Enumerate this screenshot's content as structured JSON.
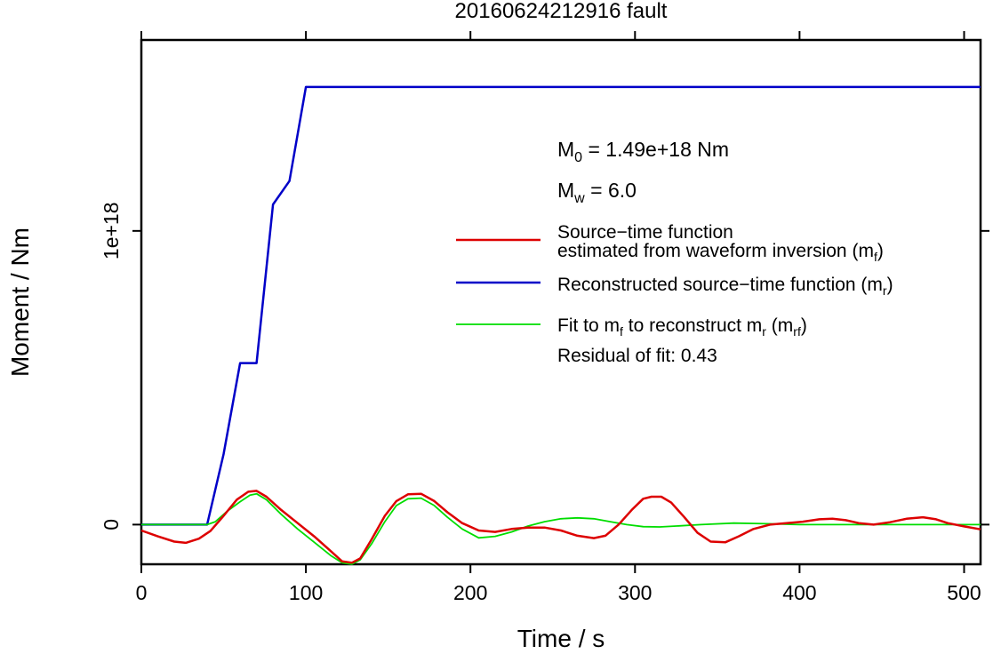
{
  "chart_data": {
    "type": "line",
    "title": "20160624212916 fault",
    "xlabel": "Time / s",
    "ylabel": "Moment / Nm",
    "xlim": [
      0,
      510
    ],
    "ylim": [
      -1.35e+17,
      1.65e+18
    ],
    "x_ticks": [
      0,
      100,
      200,
      300,
      400,
      500
    ],
    "x_tick_labels": [
      "0",
      "100",
      "200",
      "300",
      "400",
      "500"
    ],
    "y_ticks": [
      0,
      1e+18
    ],
    "y_tick_labels": [
      "0",
      "1e+18"
    ],
    "grid": false,
    "legend_position": "right",
    "annotations": {
      "m0": {
        "main": "M",
        "sub": "0",
        "rest": " = 1.49e+18 Nm"
      },
      "mw": {
        "main": "M",
        "sub": "w",
        "rest": " = 6.0"
      }
    },
    "legend": {
      "red": {
        "line1": "Source−time function",
        "line2": "estimated from waveform inversion (m",
        "sub": "f",
        "close": ")"
      },
      "blue": {
        "text": "Reconstructed source−time function (m",
        "sub": "r",
        "close": ")"
      },
      "green": {
        "t1": "Fit to m",
        "s1": "f",
        "t2": " to reconstruct m",
        "s2": "r",
        "t3": " (m",
        "s3": "rf",
        "t4": ")"
      },
      "residual": "Residual of fit: 0.43"
    },
    "series": [
      {
        "key": "reconstructed",
        "color": "#0000c8",
        "x": [
          0,
          40,
          50,
          60,
          66,
          70,
          80,
          90,
          100,
          510
        ],
        "y": [
          0,
          0,
          2.4e+17,
          5.5e+17,
          5.5e+17,
          5.5e+17,
          1.09e+18,
          1.17e+18,
          1.49e+18,
          1.49e+18
        ]
      },
      {
        "key": "estimated",
        "color": "#dd0000",
        "x": [
          0,
          10,
          20,
          27,
          35,
          42,
          50,
          58,
          65,
          70,
          76,
          85,
          95,
          105,
          115,
          122,
          128,
          133,
          140,
          148,
          155,
          162,
          170,
          178,
          186,
          195,
          205,
          215,
          225,
          235,
          245,
          255,
          265,
          275,
          282,
          290,
          298,
          305,
          310,
          316,
          322,
          330,
          338,
          346,
          355,
          363,
          372,
          382,
          392,
          402,
          412,
          420,
          428,
          436,
          445,
          455,
          465,
          475,
          483,
          490,
          500,
          510
        ],
        "y": [
          -2e+16,
          -4e+16,
          -5.8e+16,
          -6.2e+16,
          -4.8e+16,
          -2.2e+16,
          3e+16,
          8.5e+16,
          1.12e+17,
          1.15e+17,
          9.5e+16,
          5e+16,
          5000000000000000.0,
          -4e+16,
          -9e+16,
          -1.25e+17,
          -1.3e+17,
          -1.15e+17,
          -5e+16,
          3e+16,
          8e+16,
          1.03e+17,
          1.05e+17,
          8e+16,
          4.2e+16,
          5000000000000000.0,
          -2e+16,
          -2.5e+16,
          -1.5e+16,
          -1e+16,
          -1e+16,
          -2e+16,
          -3.8e+16,
          -4.6e+16,
          -3.8e+16,
          0,
          5e+16,
          8.8e+16,
          9.5e+16,
          9.5e+16,
          7.5e+16,
          2.5e+16,
          -2.8e+16,
          -5.8e+16,
          -6e+16,
          -4e+16,
          -1.5e+16,
          0,
          5000000000000000.0,
          1e+16,
          1.8e+16,
          2e+16,
          1.5e+16,
          5000000000000000.0,
          0,
          8000000000000000.0,
          2e+16,
          2.5e+16,
          1.8e+16,
          5000000000000000.0,
          -6000000000000000.0,
          -1.6e+16
        ]
      },
      {
        "key": "fit",
        "color": "#00dd00",
        "x": [
          0,
          40,
          45,
          52,
          60,
          66,
          70,
          76,
          85,
          95,
          105,
          115,
          122,
          128,
          133,
          140,
          148,
          155,
          162,
          170,
          178,
          186,
          195,
          205,
          215,
          225,
          235,
          245,
          255,
          265,
          275,
          285,
          295,
          305,
          315,
          325,
          340,
          360,
          380,
          400,
          450,
          510
        ],
        "y": [
          0,
          0,
          1e+16,
          4.5e+16,
          7.8e+16,
          1e+17,
          1.05e+17,
          8.5e+16,
          3.5e+16,
          -1.5e+16,
          -6e+16,
          -1.05e+17,
          -1.3e+17,
          -1.35e+17,
          -1.2e+17,
          -6.5e+16,
          1e+16,
          6.5e+16,
          8.8e+16,
          9e+16,
          6.5e+16,
          2.5e+16,
          -1.5e+16,
          -4.5e+16,
          -4e+16,
          -2.5e+16,
          -5000000000000000.0,
          1e+16,
          2e+16,
          2.3e+16,
          2e+16,
          1e+16,
          0,
          -7000000000000000.0,
          -8000000000000000.0,
          -5000000000000000.0,
          0,
          5000000000000000.0,
          3000000000000000.0,
          0,
          0,
          0
        ]
      }
    ]
  }
}
